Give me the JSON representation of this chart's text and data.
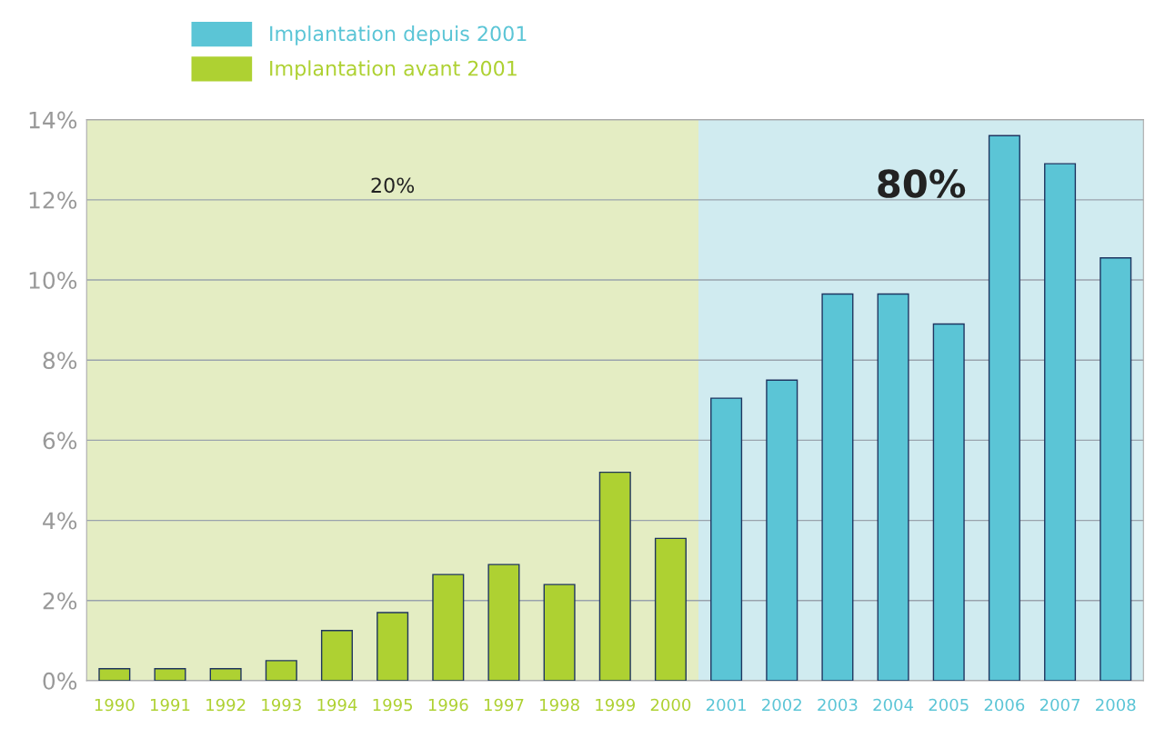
{
  "chart_data": {
    "type": "bar",
    "categories": [
      "1990",
      "1991",
      "1992",
      "1993",
      "1994",
      "1995",
      "1996",
      "1997",
      "1998",
      "1999",
      "2000",
      "2001",
      "2002",
      "2003",
      "2004",
      "2005",
      "2006",
      "2007",
      "2008"
    ],
    "series": [
      {
        "name": "Implantation depuis 2001",
        "color": "#5bc5d6",
        "values": [
          null,
          null,
          null,
          null,
          null,
          null,
          null,
          null,
          null,
          null,
          null,
          7.05,
          7.5,
          9.65,
          9.65,
          8.9,
          13.6,
          12.9,
          10.55
        ]
      },
      {
        "name": "Implantation avant 2001",
        "color": "#aed132",
        "values": [
          0.3,
          0.3,
          0.3,
          0.5,
          1.25,
          1.7,
          2.65,
          2.9,
          2.4,
          5.2,
          3.55,
          null,
          null,
          null,
          null,
          null,
          null,
          null,
          null
        ]
      }
    ],
    "ylim": [
      0,
      14
    ],
    "yticks": [
      {
        "value": 0,
        "label": "0%"
      },
      {
        "value": 2,
        "label": "2%"
      },
      {
        "value": 4,
        "label": "4%"
      },
      {
        "value": 6,
        "label": "6%"
      },
      {
        "value": 8,
        "label": "8%"
      },
      {
        "value": 10,
        "label": "10%"
      },
      {
        "value": 12,
        "label": "12%"
      },
      {
        "value": 14,
        "label": "14%"
      }
    ],
    "bands": [
      {
        "axis": "x",
        "from": "1990",
        "to": "2000",
        "label": "20%",
        "color": "#e4edc3"
      },
      {
        "axis": "x",
        "from": "2001",
        "to": "2008",
        "label": "80%",
        "color": "#d0ebf0"
      }
    ],
    "grid": "y",
    "legend": "top left"
  }
}
